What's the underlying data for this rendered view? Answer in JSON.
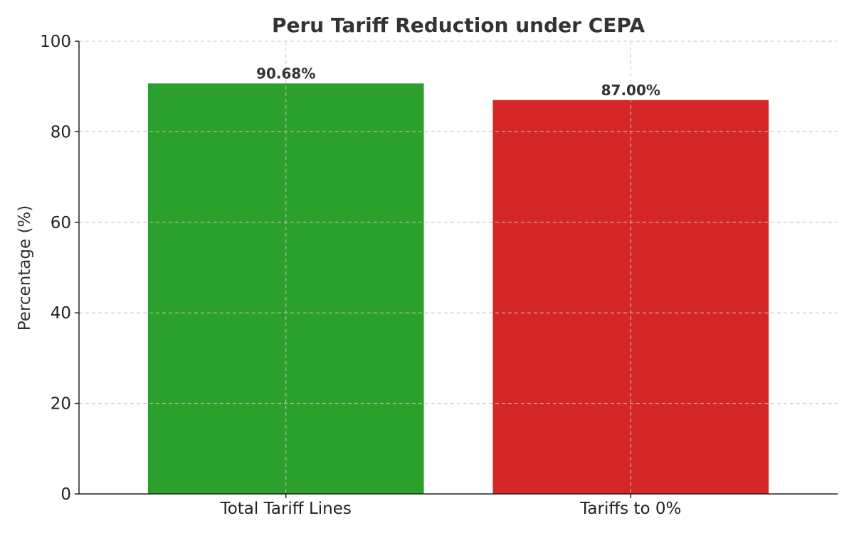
{
  "chart_data": {
    "type": "bar",
    "title": "Peru Tariff Reduction under CEPA",
    "xlabel": "",
    "ylabel": "Percentage (%)",
    "ylim": [
      0,
      100
    ],
    "yticks": [
      0,
      20,
      40,
      60,
      80,
      100
    ],
    "grid": true,
    "categories": [
      "Total Tariff Lines",
      "Tariffs to 0%"
    ],
    "values": [
      90.68,
      87.0
    ],
    "data_labels": [
      "90.68%",
      "87.00%"
    ],
    "colors": [
      "#2ca02c",
      "#d62728"
    ]
  }
}
